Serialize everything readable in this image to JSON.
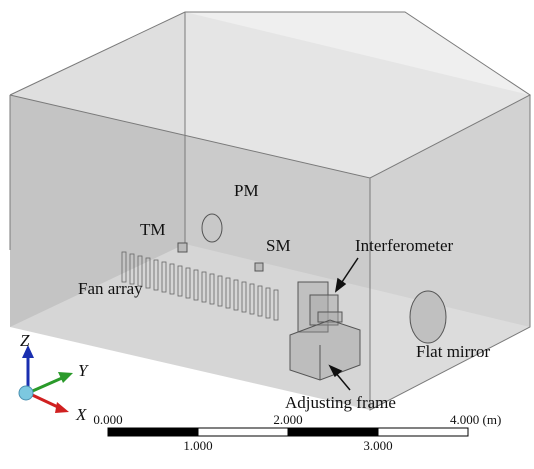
{
  "labels": {
    "pm": "PM",
    "tm": "TM",
    "sm": "SM",
    "interferometer": "Interferometer",
    "fan_array": "Fan array",
    "flat_mirror": "Flat mirror",
    "adjusting_frame": "Adjusting frame"
  },
  "axes": {
    "z": "Z",
    "y": "Y",
    "x": "X"
  },
  "scale_bar": {
    "top_labels": [
      "0.000",
      "2.000",
      "4.000 (m)"
    ],
    "bottom_labels": [
      "1.000",
      "3.000"
    ]
  }
}
